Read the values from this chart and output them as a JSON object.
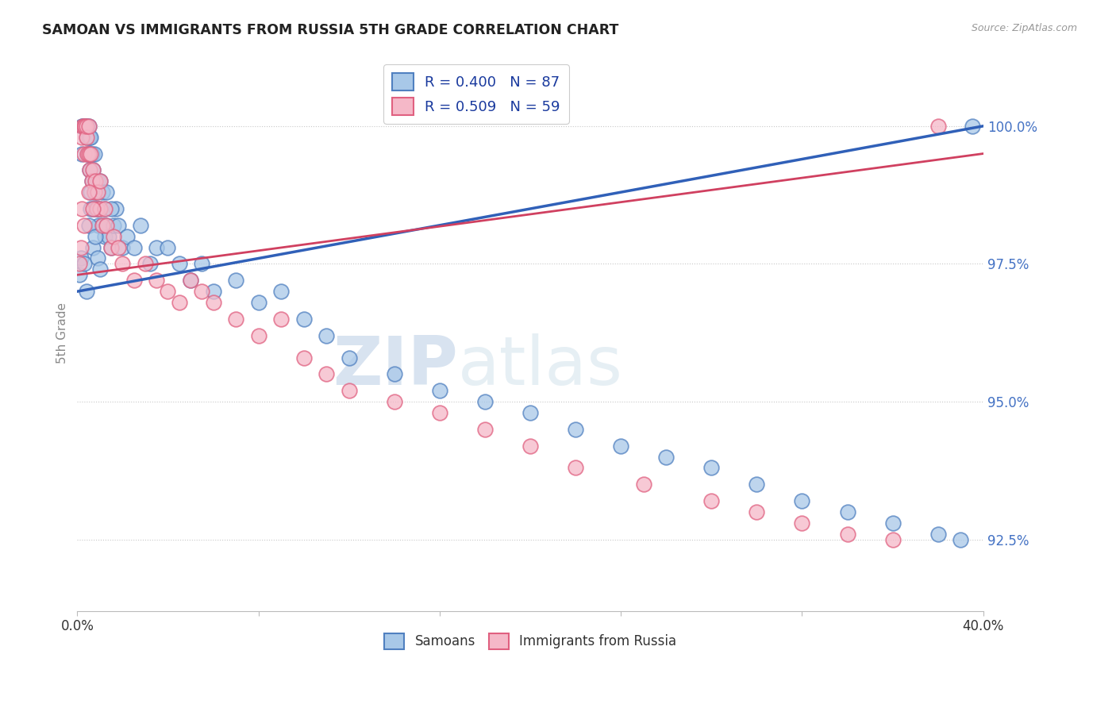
{
  "title": "SAMOAN VS IMMIGRANTS FROM RUSSIA 5TH GRADE CORRELATION CHART",
  "source": "Source: ZipAtlas.com",
  "ylabel": "5th Grade",
  "ytick_vals": [
    92.5,
    95.0,
    97.5,
    100.0
  ],
  "xmin": 0.0,
  "xmax": 40.0,
  "ymin": 91.2,
  "ymax": 101.3,
  "samoans_color": "#a8c8e8",
  "russia_color": "#f5b8c8",
  "samoans_edge_color": "#5080c0",
  "russia_edge_color": "#e06080",
  "samoans_line_color": "#3060b8",
  "russia_line_color": "#d04060",
  "legend_label_samoans": "Samoans",
  "legend_label_russia": "Immigrants from Russia",
  "r_samoans": 0.4,
  "n_samoans": 87,
  "r_russia": 0.509,
  "n_russia": 59,
  "watermark_zip": "ZIP",
  "watermark_atlas": "atlas",
  "line_samoans_x0": 0.0,
  "line_samoans_y0": 97.0,
  "line_samoans_x1": 40.0,
  "line_samoans_y1": 100.0,
  "line_russia_x0": 0.0,
  "line_russia_y0": 97.3,
  "line_russia_x1": 40.0,
  "line_russia_y1": 99.5,
  "samoans_x": [
    0.1,
    0.15,
    0.2,
    0.2,
    0.25,
    0.3,
    0.3,
    0.35,
    0.35,
    0.4,
    0.4,
    0.45,
    0.45,
    0.5,
    0.5,
    0.5,
    0.55,
    0.55,
    0.6,
    0.6,
    0.6,
    0.65,
    0.65,
    0.7,
    0.7,
    0.75,
    0.75,
    0.8,
    0.8,
    0.85,
    0.9,
    0.9,
    0.95,
    1.0,
    1.0,
    1.1,
    1.1,
    1.2,
    1.2,
    1.3,
    1.3,
    1.4,
    1.5,
    1.6,
    1.7,
    1.8,
    2.0,
    2.2,
    2.5,
    2.8,
    3.2,
    3.5,
    4.0,
    4.5,
    5.0,
    5.5,
    6.0,
    7.0,
    8.0,
    9.0,
    10.0,
    11.0,
    12.0,
    14.0,
    16.0,
    18.0,
    20.0,
    22.0,
    24.0,
    26.0,
    28.0,
    30.0,
    32.0,
    34.0,
    36.0,
    38.0,
    39.0,
    39.5,
    0.3,
    0.4,
    0.5,
    0.6,
    0.7,
    0.8,
    0.9,
    1.0,
    1.5
  ],
  "samoans_y": [
    97.3,
    97.6,
    99.5,
    100.0,
    100.0,
    100.0,
    100.0,
    100.0,
    100.0,
    100.0,
    99.8,
    100.0,
    99.5,
    99.8,
    99.5,
    100.0,
    99.2,
    99.8,
    99.5,
    99.8,
    98.8,
    99.0,
    99.5,
    98.5,
    99.2,
    98.8,
    99.5,
    98.5,
    99.0,
    98.8,
    98.5,
    99.0,
    98.2,
    98.5,
    99.0,
    98.2,
    98.8,
    98.0,
    98.5,
    98.2,
    98.8,
    98.0,
    97.8,
    98.2,
    98.5,
    98.2,
    97.8,
    98.0,
    97.8,
    98.2,
    97.5,
    97.8,
    97.8,
    97.5,
    97.2,
    97.5,
    97.0,
    97.2,
    96.8,
    97.0,
    96.5,
    96.2,
    95.8,
    95.5,
    95.2,
    95.0,
    94.8,
    94.5,
    94.2,
    94.0,
    93.8,
    93.5,
    93.2,
    93.0,
    92.8,
    92.6,
    92.5,
    100.0,
    97.5,
    97.0,
    98.2,
    98.5,
    97.8,
    98.0,
    97.6,
    97.4,
    98.5
  ],
  "russia_x": [
    0.1,
    0.15,
    0.2,
    0.25,
    0.3,
    0.3,
    0.35,
    0.4,
    0.4,
    0.45,
    0.5,
    0.5,
    0.55,
    0.6,
    0.65,
    0.7,
    0.75,
    0.8,
    0.85,
    0.9,
    1.0,
    1.0,
    1.1,
    1.2,
    1.3,
    1.5,
    1.6,
    1.8,
    2.0,
    2.5,
    3.0,
    3.5,
    4.0,
    4.5,
    5.0,
    5.5,
    6.0,
    7.0,
    8.0,
    9.0,
    10.0,
    11.0,
    12.0,
    14.0,
    16.0,
    18.0,
    20.0,
    22.0,
    25.0,
    28.0,
    30.0,
    32.0,
    34.0,
    36.0,
    38.0,
    0.2,
    0.3,
    0.5,
    0.7
  ],
  "russia_y": [
    97.5,
    97.8,
    99.8,
    100.0,
    100.0,
    99.5,
    100.0,
    99.8,
    100.0,
    99.5,
    99.5,
    100.0,
    99.2,
    99.5,
    99.0,
    99.2,
    98.8,
    99.0,
    98.5,
    98.8,
    98.5,
    99.0,
    98.2,
    98.5,
    98.2,
    97.8,
    98.0,
    97.8,
    97.5,
    97.2,
    97.5,
    97.2,
    97.0,
    96.8,
    97.2,
    97.0,
    96.8,
    96.5,
    96.2,
    96.5,
    95.8,
    95.5,
    95.2,
    95.0,
    94.8,
    94.5,
    94.2,
    93.8,
    93.5,
    93.2,
    93.0,
    92.8,
    92.6,
    92.5,
    100.0,
    98.5,
    98.2,
    98.8,
    98.5
  ]
}
